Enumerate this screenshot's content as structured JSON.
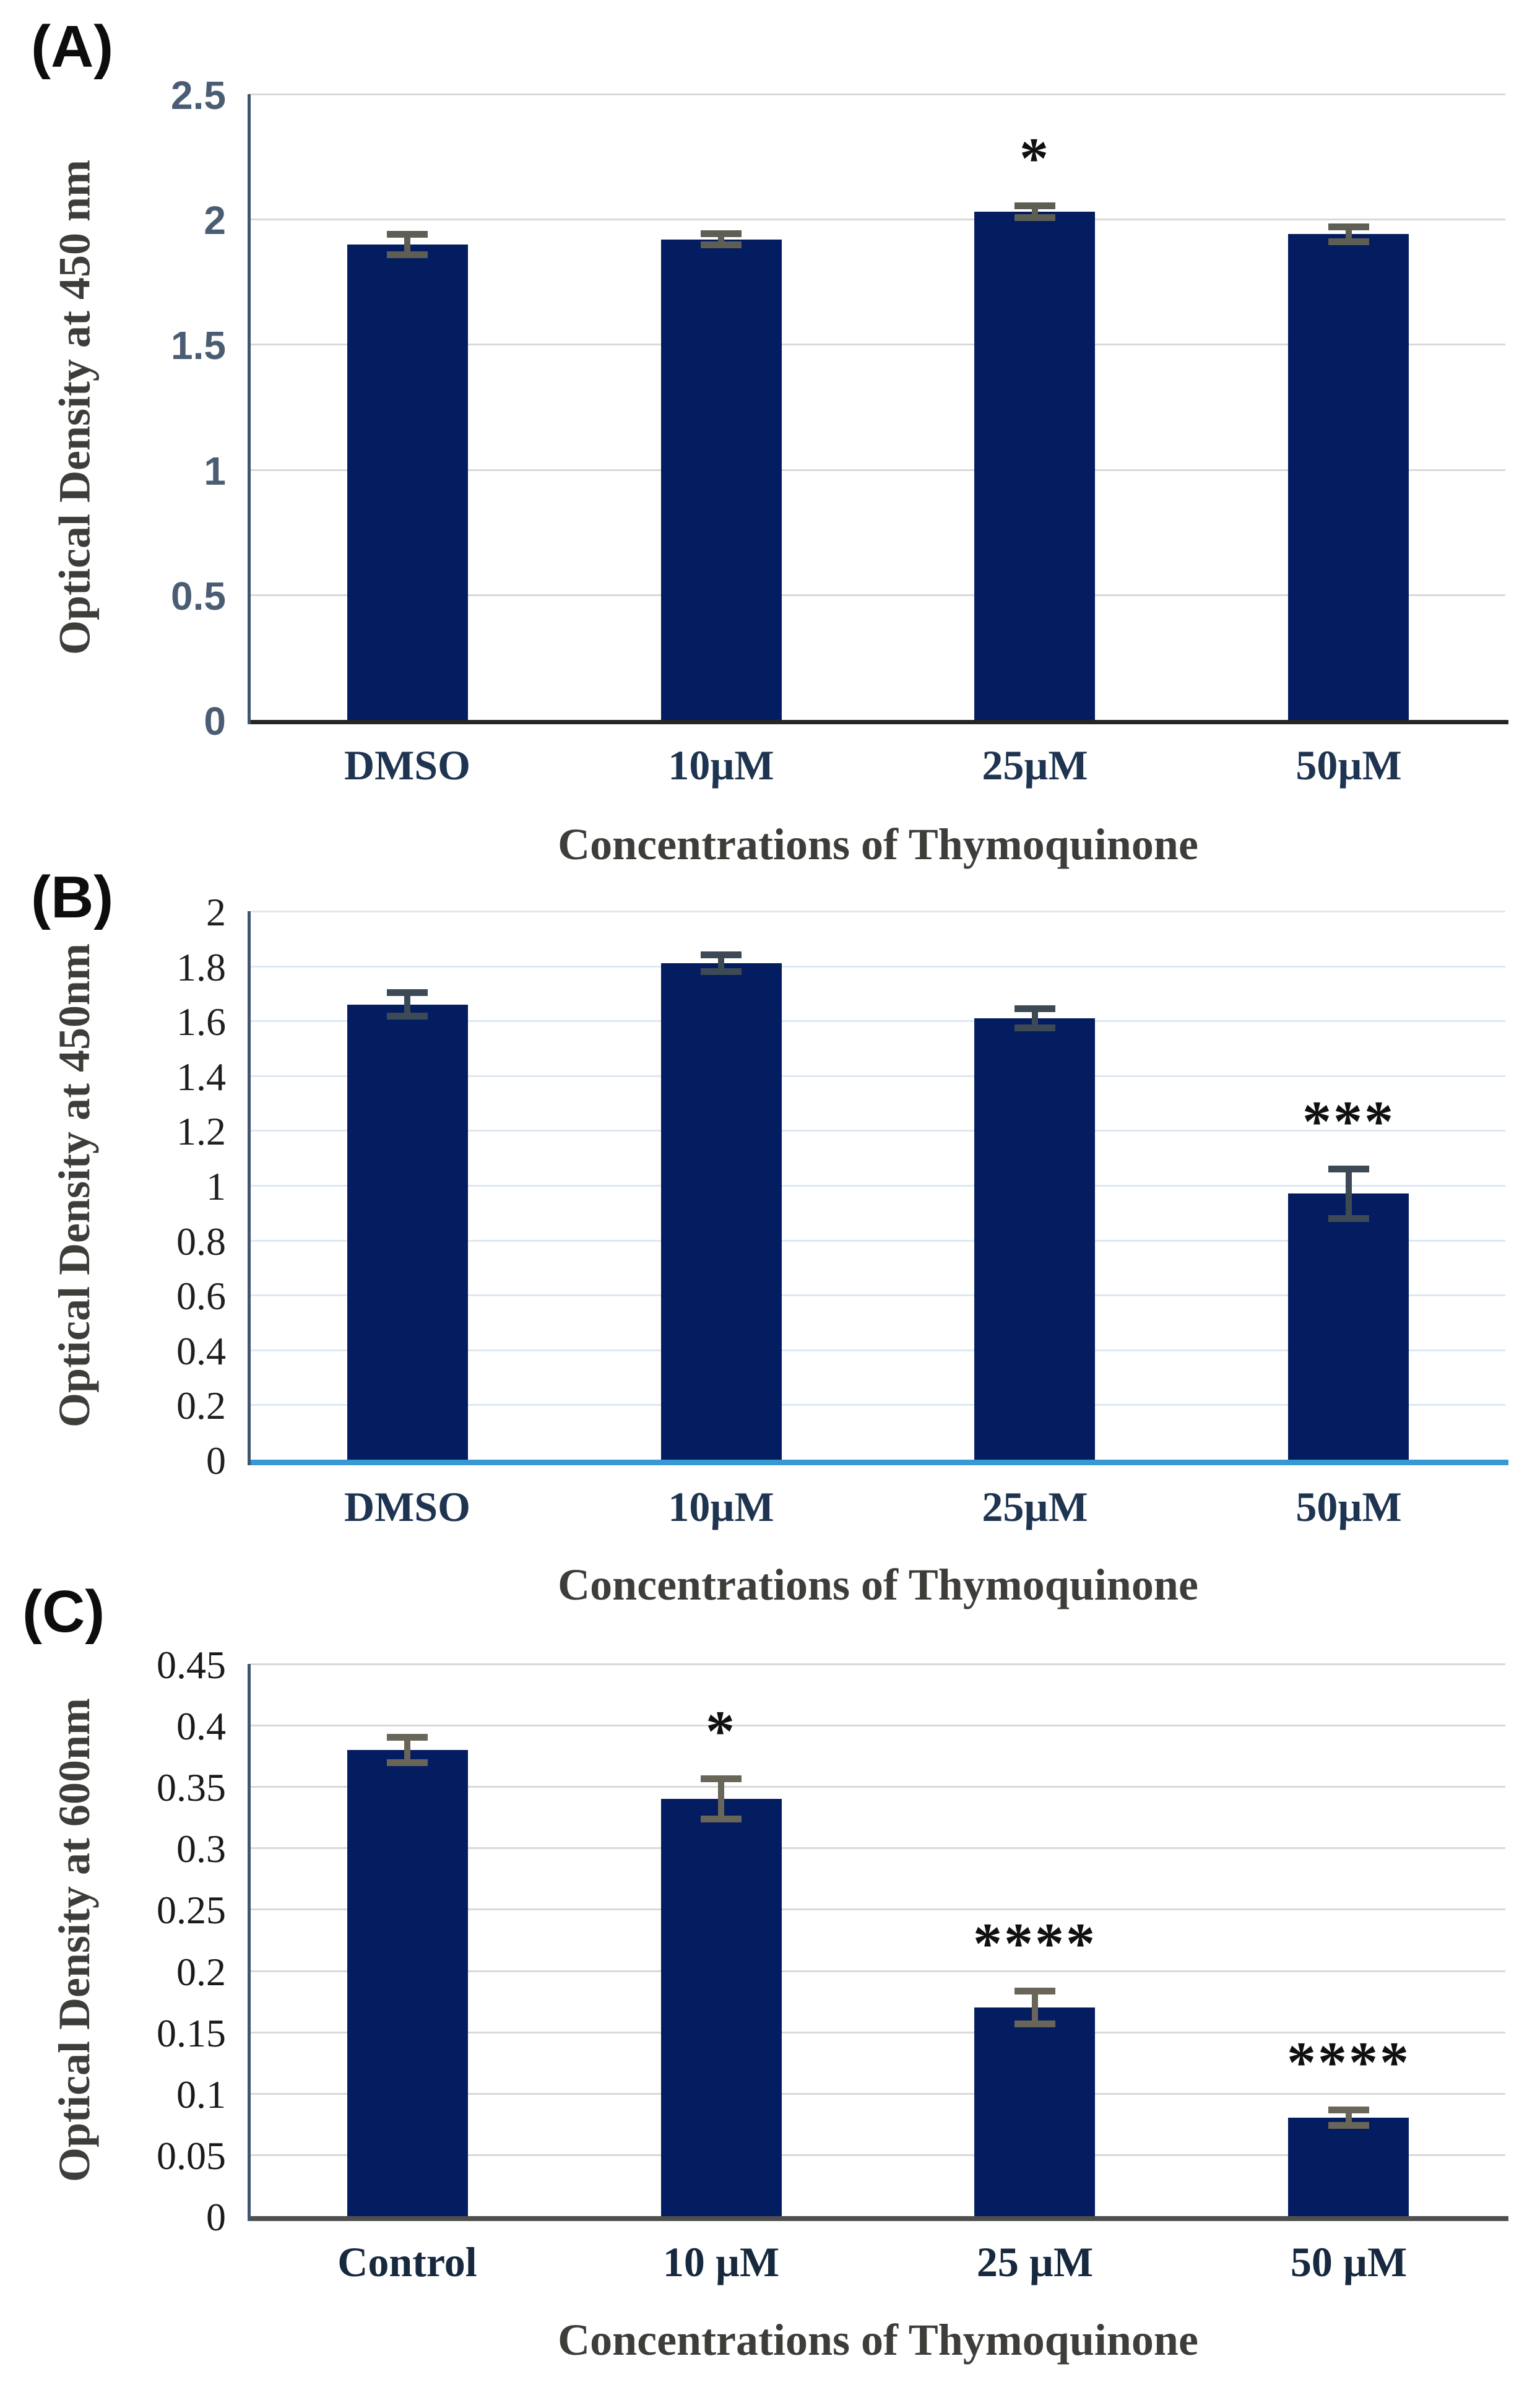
{
  "figure_title": "",
  "chart_data": [
    {
      "panel_label": "(A)",
      "type": "bar",
      "ylabel": "Optical Density at 450 nm",
      "xlabel": "Concentrations of Thymoquinone",
      "categories": [
        "DMSO",
        "10µM",
        "25µM",
        "50µM"
      ],
      "values": [
        1.9,
        1.92,
        2.03,
        1.94
      ],
      "error_bars": [
        0.03,
        0.012,
        0.012,
        0.018
      ],
      "significance": [
        "",
        "",
        "*",
        ""
      ],
      "ylim": [
        0,
        2.5
      ],
      "yticks": [
        0,
        0.5,
        1,
        1.5,
        2,
        2.5
      ],
      "ytick_labels": [
        "0",
        "0.5",
        "1",
        "1.5",
        "2",
        "2.5"
      ],
      "grid": true,
      "legend": null,
      "styles": {
        "bar_color": "#041c60",
        "grid_color": "#d9d9d9",
        "axis_line_color": "#3f5570",
        "baseline_color": "#262626",
        "error_color": "#5e5e54",
        "ytick_color": "#4a5d73",
        "ytick_font": "sans",
        "xtick_color": "#1e3450",
        "axis_title_color": "#3e3d39",
        "star_color": "#101010"
      }
    },
    {
      "panel_label": "(B)",
      "type": "bar",
      "ylabel": "Optical Density at 450nm",
      "xlabel": "Concentrations of Thymoquinone",
      "categories": [
        "DMSO",
        "10µM",
        "25µM",
        "50µM"
      ],
      "values": [
        1.66,
        1.81,
        1.61,
        0.97
      ],
      "error_bars": [
        0.033,
        0.02,
        0.025,
        0.08
      ],
      "significance": [
        "",
        "",
        "",
        "***"
      ],
      "ylim": [
        0,
        2
      ],
      "yticks": [
        0,
        0.2,
        0.4,
        0.6,
        0.8,
        1,
        1.2,
        1.4,
        1.6,
        1.8,
        2
      ],
      "ytick_labels": [
        "0",
        "0.2",
        "0.4",
        "0.6",
        "0.8",
        "1",
        "1.2",
        "1.4",
        "1.6",
        "1.8",
        "2"
      ],
      "grid": true,
      "legend": null,
      "styles": {
        "bar_color": "#041c60",
        "grid_color": "#dde8f3",
        "axis_line_color": "#3f5570",
        "baseline_color": "#3898d4",
        "error_color": "#3d4a55",
        "ytick_color": "#1f1f1f",
        "ytick_font": "serif",
        "xtick_color": "#1e3450",
        "axis_title_color": "#3e3d39",
        "star_color": "#101010"
      }
    },
    {
      "panel_label": "(C)",
      "type": "bar",
      "ylabel": "Optical Density at 600nm",
      "xlabel": "Concentrations of Thymoquinone",
      "categories": [
        "Control",
        "10 µM",
        "25 µM",
        "50 µM"
      ],
      "values": [
        0.38,
        0.34,
        0.17,
        0.08
      ],
      "error_bars": [
        0.008,
        0.014,
        0.011,
        0.004
      ],
      "significance": [
        "",
        "*",
        "****",
        "****"
      ],
      "ylim": [
        0,
        0.45
      ],
      "yticks": [
        0,
        0.05,
        0.1,
        0.15,
        0.2,
        0.25,
        0.3,
        0.35,
        0.4,
        0.45
      ],
      "ytick_labels": [
        "0",
        "0.05",
        "0.1",
        "0.15",
        "0.2",
        "0.25",
        "0.3",
        "0.35",
        "0.4",
        "0.45"
      ],
      "grid": true,
      "legend": null,
      "styles": {
        "bar_color": "#041c60",
        "grid_color": "#d9d9d9",
        "axis_line_color": "#3f5570",
        "baseline_color": "#4f4f4f",
        "error_color": "#6a6559",
        "ytick_color": "#1a1a1a",
        "ytick_font": "serif",
        "xtick_color": "#16293e",
        "axis_title_color": "#3e3d39",
        "star_color": "#101010"
      }
    }
  ]
}
